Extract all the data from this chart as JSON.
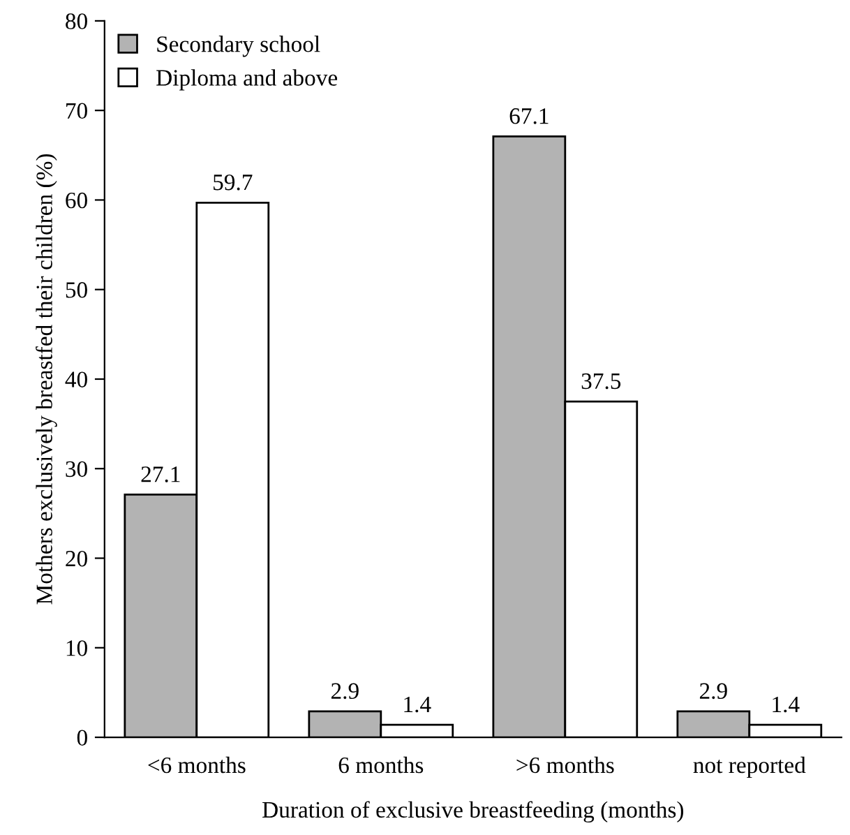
{
  "chart_data": {
    "type": "bar",
    "xlabel": "Duration of exclusive breastfeeding (months)",
    "ylabel": "Mothers exclusively breastfed their children (%)",
    "categories": [
      "<6 months",
      "6 months",
      ">6 months",
      "not reported"
    ],
    "series": [
      {
        "name": "Secondary school",
        "color": "#b3b3b3",
        "values": [
          27.1,
          2.9,
          67.1,
          2.9
        ]
      },
      {
        "name": "Diploma and above",
        "color": "#ffffff",
        "values": [
          59.7,
          1.4,
          37.5,
          1.4
        ]
      }
    ],
    "ylim": [
      0,
      80
    ],
    "yticks": [
      0,
      10,
      20,
      30,
      40,
      50,
      60,
      70,
      80
    ],
    "data_labels": true,
    "legend": "top left",
    "grid": false
  }
}
